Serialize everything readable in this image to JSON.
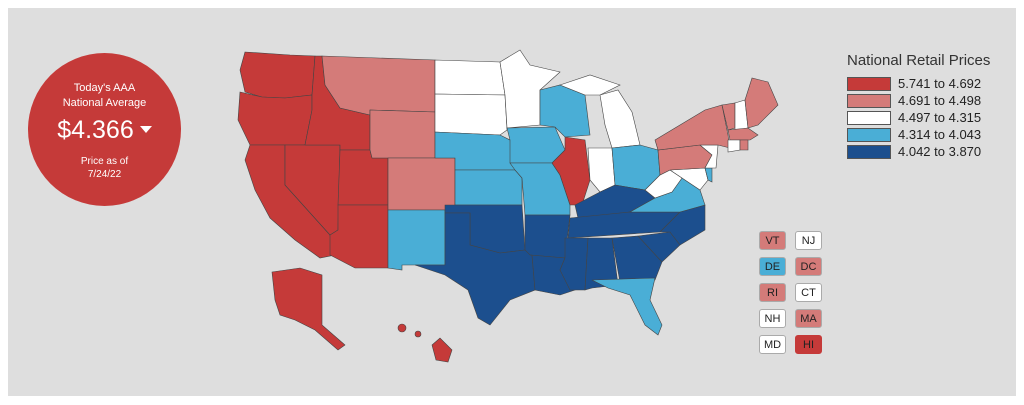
{
  "average": {
    "title_line1": "Today's AAA",
    "title_line2": "National Average",
    "value": "$4.366",
    "date_line1": "Price as of",
    "date_line2": "7/24/22"
  },
  "legend": {
    "title": "National Retail Prices",
    "items": [
      {
        "range": "5.741 to 4.692",
        "color": "#c53a39"
      },
      {
        "range": "4.691 to 4.498",
        "color": "#d47b79"
      },
      {
        "range": "4.497 to 4.315",
        "color": "#ffffff"
      },
      {
        "range": "4.314 to 4.043",
        "color": "#4aaed6"
      },
      {
        "range": "4.042 to 3.870",
        "color": "#1c4f8e"
      }
    ]
  },
  "small_states": [
    {
      "code": "VT",
      "color": "#d47b79"
    },
    {
      "code": "NJ",
      "color": "#ffffff"
    },
    {
      "code": "DE",
      "color": "#4aaed6"
    },
    {
      "code": "DC",
      "color": "#d47b79"
    },
    {
      "code": "RI",
      "color": "#d47b79"
    },
    {
      "code": "CT",
      "color": "#ffffff"
    },
    {
      "code": "NH",
      "color": "#ffffff"
    },
    {
      "code": "MA",
      "color": "#d47b79"
    },
    {
      "code": "MD",
      "color": "#ffffff"
    },
    {
      "code": "HI",
      "color": "#c53a39"
    }
  ],
  "colors": {
    "tier1": "#c53a39",
    "tier2": "#d47b79",
    "tier3": "#ffffff",
    "tier4": "#4aaed6",
    "tier5": "#1c4f8e",
    "background": "#dedede"
  }
}
